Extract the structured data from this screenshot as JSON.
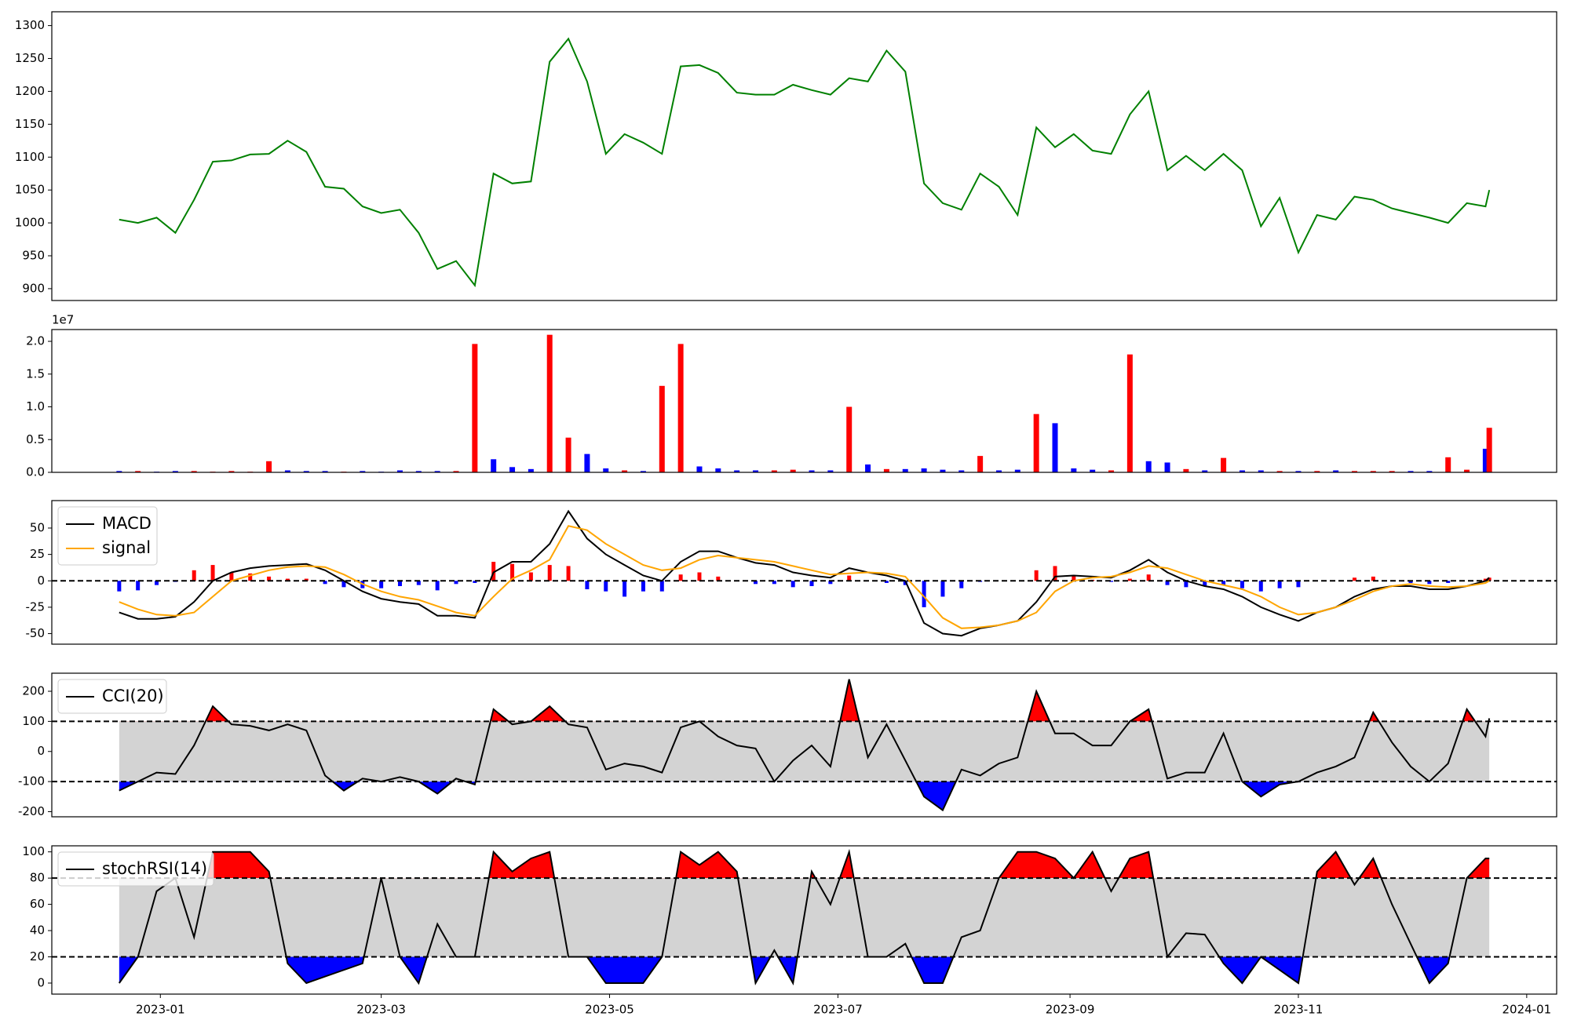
{
  "chart_data": [
    {
      "type": "line",
      "series": [
        {
          "color": "green",
          "values": [
            1005,
            1000,
            1008,
            985,
            1035,
            1093,
            1095,
            1104,
            1105,
            1125,
            1108,
            1055,
            1052,
            1025,
            1015,
            1020,
            985,
            930,
            942,
            905,
            1075,
            1060,
            1063,
            1245,
            1280,
            1215,
            1105,
            1135,
            1122,
            1105,
            1238,
            1240,
            1228,
            1198,
            1195,
            1195,
            1210,
            1202,
            1195,
            1220,
            1215,
            1262,
            1230,
            1060,
            1030,
            1020,
            1075,
            1055,
            1012,
            1145,
            1115,
            1135,
            1110,
            1105,
            1165,
            1200,
            1080,
            1102,
            1080,
            1105,
            1080,
            995,
            1038,
            955,
            1012,
            1005,
            1040,
            1035,
            1022,
            1015,
            1008,
            1000,
            1030,
            1025,
            1050
          ]
        }
      ],
      "ylim": [
        882,
        1321
      ],
      "yticks": [
        900,
        950,
        1000,
        1050,
        1100,
        1150,
        1200,
        1250,
        1300
      ]
    },
    {
      "type": "bar",
      "offset_label": "1e7",
      "values": [
        200000,
        200000,
        100000,
        200000,
        200000,
        100000,
        200000,
        100000,
        1700000,
        300000,
        200000,
        200000,
        100000,
        200000,
        100000,
        300000,
        200000,
        200000,
        200000,
        19600000,
        2000000,
        800000,
        500000,
        21000000,
        5300000,
        2800000,
        600000,
        300000,
        200000,
        13200000,
        19600000,
        900000,
        600000,
        300000,
        300000,
        300000,
        400000,
        300000,
        300000,
        10000000,
        1200000,
        500000,
        500000,
        600000,
        400000,
        300000,
        2500000,
        300000,
        400000,
        8900000,
        7500000,
        600000,
        400000,
        300000,
        18000000,
        1700000,
        1500000,
        500000,
        300000,
        2200000,
        300000,
        300000,
        200000,
        200000,
        200000,
        300000,
        200000,
        200000,
        200000,
        200000,
        200000,
        2300000,
        400000,
        3600000,
        6800000
      ],
      "colors": [
        "blue",
        "red",
        "blue",
        "blue",
        "red",
        "red",
        "red",
        "red",
        "red",
        "blue",
        "blue",
        "blue",
        "red",
        "blue",
        "blue",
        "blue",
        "blue",
        "blue",
        "red",
        "red",
        "blue",
        "blue",
        "blue",
        "red",
        "red",
        "blue",
        "blue",
        "red",
        "blue",
        "red",
        "red",
        "blue",
        "blue",
        "blue",
        "blue",
        "red",
        "red",
        "blue",
        "blue",
        "red",
        "blue",
        "red",
        "blue",
        "blue",
        "blue",
        "blue",
        "red",
        "blue",
        "blue",
        "red",
        "blue",
        "blue",
        "blue",
        "red",
        "red",
        "blue",
        "blue",
        "red",
        "blue",
        "red",
        "blue",
        "blue",
        "red",
        "blue",
        "red",
        "blue",
        "red",
        "red",
        "red",
        "blue",
        "blue",
        "red",
        "red",
        "blue",
        "red"
      ],
      "ylim": [
        0,
        21800000
      ],
      "yticks": [
        {
          "value": 0,
          "label": "0.0"
        },
        {
          "value": 5000000,
          "label": "0.5"
        },
        {
          "value": 10000000,
          "label": "1.0"
        },
        {
          "value": 15000000,
          "label": "1.5"
        },
        {
          "value": 20000000,
          "label": "2.0"
        }
      ]
    },
    {
      "type": "line",
      "legend": "upper left",
      "series": [
        {
          "name": "MACD",
          "color": "black",
          "values": [
            -30,
            -36,
            -36,
            -34,
            -20,
            0,
            8,
            12,
            14,
            15,
            16,
            10,
            0,
            -10,
            -17,
            -20,
            -22,
            -33,
            -33,
            -35,
            8,
            18,
            18,
            35,
            66,
            40,
            25,
            15,
            5,
            0,
            18,
            28,
            28,
            22,
            17,
            15,
            8,
            5,
            3,
            12,
            8,
            5,
            0,
            -40,
            -50,
            -52,
            -45,
            -42,
            -38,
            -20,
            4,
            5,
            4,
            3,
            10,
            20,
            8,
            0,
            -5,
            -8,
            -15,
            -25,
            -32,
            -38,
            -30,
            -25,
            -15,
            -8,
            -5,
            -5,
            -8,
            -8,
            -5,
            0,
            3
          ]
        },
        {
          "name": "signal",
          "color": "orange",
          "values": [
            -20,
            -27,
            -32,
            -33,
            -30,
            -15,
            0,
            5,
            10,
            13,
            14,
            13,
            6,
            -3,
            -10,
            -15,
            -18,
            -24,
            -30,
            -33,
            -15,
            2,
            10,
            20,
            52,
            48,
            35,
            25,
            15,
            10,
            12,
            20,
            24,
            22,
            20,
            18,
            14,
            10,
            6,
            7,
            8,
            7,
            4,
            -15,
            -35,
            -45,
            -44,
            -42,
            -38,
            -30,
            -10,
            0,
            3,
            4,
            8,
            14,
            12,
            6,
            0,
            -4,
            -8,
            -15,
            -25,
            -32,
            -30,
            -25,
            -18,
            -10,
            -5,
            -3,
            -5,
            -6,
            -5,
            -2,
            0
          ]
        }
      ],
      "histogram": {
        "positive_color": "red",
        "negative_color": "blue",
        "values": [
          -10,
          -9,
          -4,
          -1,
          10,
          15,
          8,
          7,
          4,
          2,
          2,
          -3,
          -6,
          -7,
          -7,
          -5,
          -4,
          -9,
          -3,
          -2,
          18,
          16,
          8,
          15,
          14,
          -8,
          -10,
          -15,
          -10,
          -10,
          6,
          8,
          4,
          0,
          -3,
          -3,
          -6,
          -5,
          -3,
          5,
          0,
          -2,
          -4,
          -25,
          -15,
          -7,
          -1,
          0,
          0,
          10,
          14,
          5,
          1,
          -1,
          2,
          6,
          -4,
          -6,
          -5,
          -4,
          -7,
          -10,
          -7,
          -6,
          0,
          0,
          3,
          4,
          0,
          -2,
          -3,
          -2,
          0,
          2,
          3
        ]
      },
      "hlines": [
        0
      ],
      "ylim": [
        -60,
        76
      ],
      "yticks": [
        -50,
        -25,
        0,
        25,
        50
      ]
    },
    {
      "type": "line",
      "legend": "upper left",
      "series": [
        {
          "name": "CCI(20)",
          "color": "black",
          "values": [
            -130,
            -100,
            -70,
            -75,
            20,
            150,
            90,
            85,
            70,
            90,
            70,
            -80,
            -130,
            -90,
            -100,
            -85,
            -100,
            -140,
            -90,
            -110,
            140,
            90,
            100,
            150,
            90,
            80,
            -60,
            -40,
            -50,
            -70,
            80,
            100,
            50,
            20,
            10,
            -100,
            -30,
            20,
            -50,
            240,
            -20,
            90,
            -30,
            -150,
            -195,
            -60,
            -80,
            -40,
            -20,
            200,
            60,
            60,
            20,
            20,
            100,
            140,
            -90,
            -70,
            -70,
            60,
            -100,
            -150,
            -110,
            -100,
            -70,
            -50,
            -20,
            130,
            30,
            -50,
            -100,
            -40,
            140,
            50,
            110
          ]
        }
      ],
      "thresholds": [
        -100,
        100
      ],
      "band_color": "lightgray",
      "upper_fill": "red",
      "lower_fill": "blue",
      "ylim": [
        -217,
        260
      ],
      "yticks": [
        -200,
        -100,
        0,
        100,
        200
      ]
    },
    {
      "type": "line",
      "legend": "upper left",
      "series": [
        {
          "name": "stochRSI(14)",
          "color": "black",
          "values": [
            0,
            20,
            70,
            80,
            35,
            100,
            100,
            100,
            85,
            15,
            0,
            5,
            10,
            15,
            80,
            20,
            0,
            45,
            20,
            20,
            100,
            85,
            95,
            100,
            20,
            20,
            0,
            0,
            0,
            20,
            100,
            90,
            100,
            85,
            0,
            25,
            0,
            85,
            60,
            100,
            20,
            20,
            30,
            0,
            0,
            35,
            40,
            80,
            100,
            100,
            95,
            80,
            100,
            70,
            95,
            100,
            20,
            38,
            37,
            15,
            0,
            20,
            10,
            0,
            85,
            100,
            75,
            95,
            60,
            30,
            0,
            15,
            80,
            95,
            95
          ]
        }
      ],
      "thresholds": [
        20,
        80
      ],
      "band_color": "lightgray",
      "upper_fill": "red",
      "lower_fill": "blue",
      "ylim": [
        -8.4,
        104.6
      ],
      "yticks": [
        0,
        20,
        40,
        60,
        80,
        100
      ],
      "x": [
        "2022-12-21",
        "2022-12-26",
        "2022-12-31",
        "2023-01-05",
        "2023-01-10",
        "2023-01-15",
        "2023-01-20",
        "2023-01-25",
        "2023-01-30",
        "2023-02-04",
        "2023-02-09",
        "2023-02-14",
        "2023-02-19",
        "2023-02-24",
        "2023-03-01",
        "2023-03-06",
        "2023-03-11",
        "2023-03-16",
        "2023-03-21",
        "2023-03-26",
        "2023-03-31",
        "2023-04-05",
        "2023-04-10",
        "2023-04-15",
        "2023-04-20",
        "2023-04-25",
        "2023-04-30",
        "2023-05-05",
        "2023-05-10",
        "2023-05-15",
        "2023-05-20",
        "2023-05-25",
        "2023-05-30",
        "2023-06-04",
        "2023-06-09",
        "2023-06-14",
        "2023-06-19",
        "2023-06-24",
        "2023-06-29",
        "2023-07-04",
        "2023-07-09",
        "2023-07-14",
        "2023-07-19",
        "2023-07-24",
        "2023-07-29",
        "2023-08-03",
        "2023-08-08",
        "2023-08-13",
        "2023-08-18",
        "2023-08-23",
        "2023-08-28",
        "2023-09-02",
        "2023-09-07",
        "2023-09-12",
        "2023-09-17",
        "2023-09-22",
        "2023-09-27",
        "2023-10-02",
        "2023-10-07",
        "2023-10-12",
        "2023-10-17",
        "2023-10-22",
        "2023-10-27",
        "2023-11-01",
        "2023-11-06",
        "2023-11-11",
        "2023-11-16",
        "2023-11-21",
        "2023-11-26",
        "2023-12-01",
        "2023-12-06",
        "2023-12-11",
        "2023-12-16",
        "2023-12-21",
        "2023-12-22"
      ],
      "xlim": [
        "2022-12-03",
        "2024-01-09"
      ],
      "xticks": [
        {
          "value": "2023-01-01",
          "label": "2023-01"
        },
        {
          "value": "2023-03-01",
          "label": "2023-03"
        },
        {
          "value": "2023-05-01",
          "label": "2023-05"
        },
        {
          "value": "2023-07-01",
          "label": "2023-07"
        },
        {
          "value": "2023-09-01",
          "label": "2023-09"
        },
        {
          "value": "2023-11-01",
          "label": "2023-11"
        },
        {
          "value": "2024-01-01",
          "label": "2024-01"
        }
      ]
    }
  ]
}
